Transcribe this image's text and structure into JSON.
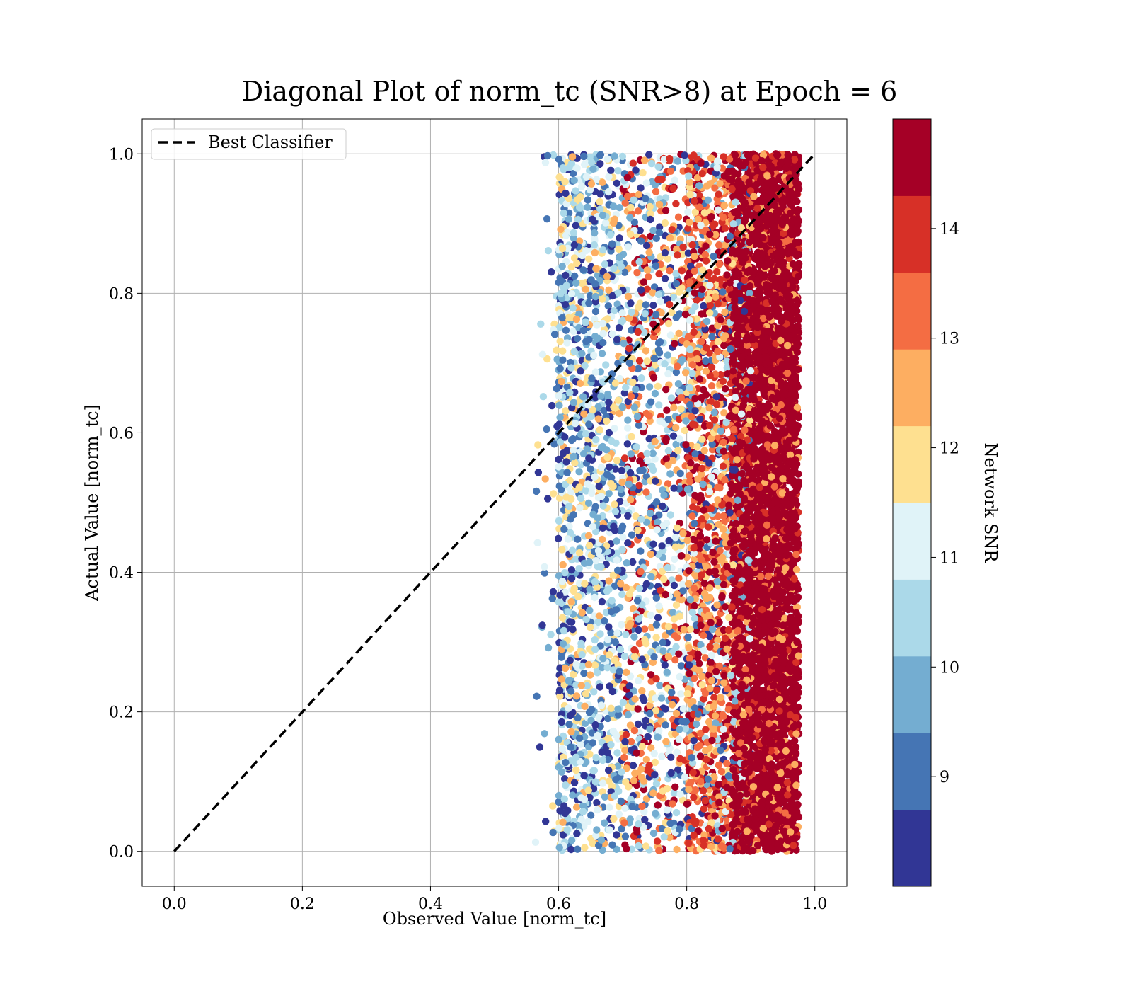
{
  "chart_data": {
    "type": "scatter",
    "title": "Diagonal Plot of norm_tc (SNR>8) at Epoch = 6",
    "xlabel": "Observed Value [norm_tc]",
    "ylabel": "Actual Value [norm_tc]",
    "xlim": [
      -0.05,
      1.05
    ],
    "ylim": [
      -0.05,
      1.05
    ],
    "xticks": [
      0.0,
      0.2,
      0.4,
      0.6,
      0.8,
      1.0
    ],
    "yticks": [
      0.0,
      0.2,
      0.4,
      0.6,
      0.8,
      1.0
    ],
    "xtick_labels": [
      "0.0",
      "0.2",
      "0.4",
      "0.6",
      "0.8",
      "1.0"
    ],
    "ytick_labels": [
      "0.0",
      "0.2",
      "0.4",
      "0.6",
      "0.8",
      "1.0"
    ],
    "grid": true,
    "legend": {
      "placement": "upper-left",
      "entries": [
        {
          "label": "Best Classifier",
          "style": "dashed",
          "color": "#000000"
        }
      ]
    },
    "reference_line": {
      "name": "Best Classifier",
      "x": [
        0.0,
        1.0
      ],
      "y": [
        0.0,
        1.0
      ]
    },
    "scatter": {
      "x_range_observed": [
        0.56,
        0.975
      ],
      "y_range_observed": [
        0.0,
        1.0
      ],
      "approx_point_count": 9000,
      "color_variable": "Network SNR",
      "trend": "Higher SNR points cluster at larger observed values (0.85–0.97); lower SNR points spread across 0.58–0.85."
    },
    "colorbar": {
      "label": "Network SNR",
      "range": [
        8,
        15
      ],
      "ticks": [
        9,
        10,
        11,
        12,
        13,
        14
      ],
      "tick_labels": [
        "9",
        "10",
        "11",
        "12",
        "13",
        "14"
      ],
      "boundaries": [
        8,
        8.7,
        9.4,
        10.1,
        10.8,
        11.5,
        12.2,
        12.9,
        13.6,
        14.3,
        15
      ],
      "colors": [
        "#313695",
        "#4575b4",
        "#74add1",
        "#abd9e9",
        "#e0f3f8",
        "#fee090",
        "#fdae61",
        "#f46d43",
        "#d73027",
        "#a50026"
      ]
    }
  }
}
